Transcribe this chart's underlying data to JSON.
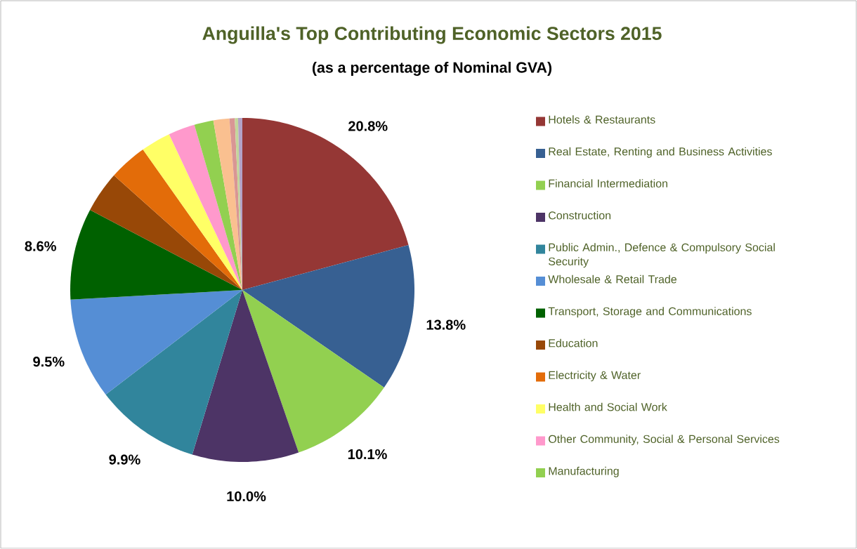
{
  "chart_data": {
    "type": "pie",
    "title": "Anguilla's Top Contributing Economic Sectors 2015",
    "subtitle": "(as a percentage of Nominal GVA)",
    "categories": [
      "Hotels & Restaurants",
      "Real Estate, Renting and Business Activities",
      "Financial Intermediation",
      "Construction",
      "Public Admin., Defence & Compulsory Social Security",
      "Wholesale & Retail Trade",
      "Transport, Storage and Communications",
      "Education",
      "Electricity & Water",
      "Health and Social Work",
      "Other Community, Social & Personal Services",
      "Manufacturing",
      null,
      null,
      null,
      null
    ],
    "values": [
      20.8,
      13.8,
      10.1,
      10.0,
      9.9,
      9.5,
      8.6,
      3.9,
      3.6,
      2.8,
      2.5,
      1.8,
      1.5,
      0.5,
      0.3,
      0.4
    ],
    "value_labels": [
      "20.8%",
      "13.8%",
      "10.1%",
      "10.0%",
      "9.9%",
      "9.5%",
      "8.6%",
      null,
      null,
      null,
      null,
      null,
      null,
      null,
      null,
      null
    ],
    "colors": [
      "#953735",
      "#376092",
      "#92d050",
      "#4d3466",
      "#31859c",
      "#558ed5",
      "#006100",
      "#984807",
      "#e36c09",
      "#ffff66",
      "#ff99cc",
      "#92d050",
      "#fac090",
      "#d99694",
      "#c3d69b",
      "#b3a2c7"
    ],
    "legend": "right"
  }
}
